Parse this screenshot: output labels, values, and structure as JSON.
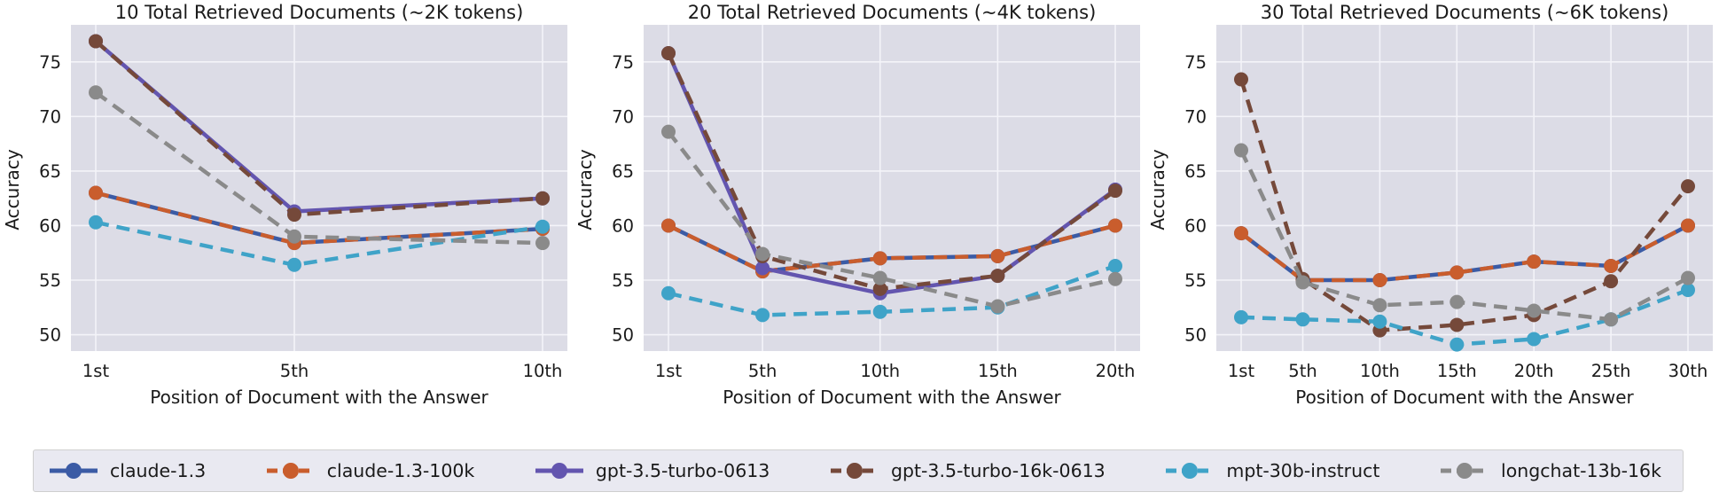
{
  "figure": {
    "plot_bg": "#DCDCE6",
    "grid_color": "#F4F4F9",
    "text_color": "#1a1a1a"
  },
  "legend": {
    "items": [
      {
        "label": "claude-1.3",
        "color": "#3B5BA5",
        "dashed": false
      },
      {
        "label": "claude-1.3-100k",
        "color": "#C95D2D",
        "dashed": true
      },
      {
        "label": "gpt-3.5-turbo-0613",
        "color": "#6355AF",
        "dashed": false
      },
      {
        "label": "gpt-3.5-turbo-16k-0613",
        "color": "#75493A",
        "dashed": true
      },
      {
        "label": "mpt-30b-instruct",
        "color": "#3FA3C8",
        "dashed": true
      },
      {
        "label": "longchat-13b-16k",
        "color": "#8A8A8A",
        "dashed": true
      }
    ]
  },
  "chart_data": [
    {
      "type": "line",
      "title": "10 Total Retrieved Documents (~2K tokens)",
      "xlabel": "Position of Document with the Answer",
      "ylabel": "Accuracy",
      "x": [
        1,
        5,
        10
      ],
      "x_tick_labels": [
        "1st",
        "5th",
        "10th"
      ],
      "yticks": [
        50,
        55,
        60,
        65,
        70,
        75
      ],
      "ylim": [
        48.5,
        78.4
      ],
      "grid": true,
      "legend_position": "bottom",
      "series": [
        {
          "name": "claude-1.3",
          "color": "#3B5BA5",
          "dashed": false,
          "values": [
            63.0,
            58.4,
            59.7
          ]
        },
        {
          "name": "claude-1.3-100k",
          "color": "#C95D2D",
          "dashed": true,
          "values": [
            63.0,
            58.4,
            59.7
          ]
        },
        {
          "name": "gpt-3.5-turbo-0613",
          "color": "#6355AF",
          "dashed": false,
          "values": [
            76.9,
            61.3,
            62.5
          ]
        },
        {
          "name": "gpt-3.5-turbo-16k-0613",
          "color": "#75493A",
          "dashed": true,
          "values": [
            76.9,
            61.0,
            62.5
          ]
        },
        {
          "name": "mpt-30b-instruct",
          "color": "#3FA3C8",
          "dashed": true,
          "values": [
            60.3,
            56.4,
            59.9
          ]
        },
        {
          "name": "longchat-13b-16k",
          "color": "#8A8A8A",
          "dashed": true,
          "values": [
            72.2,
            59.0,
            58.4
          ]
        }
      ]
    },
    {
      "type": "line",
      "title": "20 Total Retrieved Documents (~4K tokens)",
      "xlabel": "Position of Document with the Answer",
      "ylabel": "Accuracy",
      "x": [
        1,
        5,
        10,
        15,
        20
      ],
      "x_tick_labels": [
        "1st",
        "5th",
        "10th",
        "15th",
        "20th"
      ],
      "yticks": [
        50,
        55,
        60,
        65,
        70,
        75
      ],
      "ylim": [
        48.5,
        78.4
      ],
      "grid": true,
      "legend_position": "bottom",
      "series": [
        {
          "name": "claude-1.3",
          "color": "#3B5BA5",
          "dashed": false,
          "values": [
            60.0,
            55.8,
            57.0,
            57.2,
            60.0
          ]
        },
        {
          "name": "claude-1.3-100k",
          "color": "#C95D2D",
          "dashed": true,
          "values": [
            60.0,
            55.8,
            57.0,
            57.2,
            60.0
          ]
        },
        {
          "name": "gpt-3.5-turbo-0613",
          "color": "#6355AF",
          "dashed": false,
          "values": [
            75.8,
            56.1,
            53.8,
            55.4,
            63.3
          ]
        },
        {
          "name": "gpt-3.5-turbo-16k-0613",
          "color": "#75493A",
          "dashed": true,
          "values": [
            75.8,
            57.2,
            54.2,
            55.4,
            63.2
          ]
        },
        {
          "name": "mpt-30b-instruct",
          "color": "#3FA3C8",
          "dashed": true,
          "values": [
            53.8,
            51.8,
            52.1,
            52.5,
            56.3
          ]
        },
        {
          "name": "longchat-13b-16k",
          "color": "#8A8A8A",
          "dashed": true,
          "values": [
            68.6,
            57.4,
            55.2,
            52.6,
            55.1
          ]
        }
      ]
    },
    {
      "type": "line",
      "title": "30 Total Retrieved Documents (~6K tokens)",
      "xlabel": "Position of Document with the Answer",
      "ylabel": "Accuracy",
      "x": [
        1,
        5,
        10,
        15,
        20,
        25,
        30
      ],
      "x_tick_labels": [
        "1st",
        "5th",
        "10th",
        "15th",
        "20th",
        "25th",
        "30th"
      ],
      "yticks": [
        50,
        55,
        60,
        65,
        70,
        75
      ],
      "ylim": [
        48.5,
        78.4
      ],
      "grid": true,
      "legend_position": "bottom",
      "series": [
        {
          "name": "claude-1.3",
          "color": "#3B5BA5",
          "dashed": false,
          "values": [
            59.3,
            55.0,
            55.0,
            55.7,
            56.7,
            56.3,
            60.0
          ]
        },
        {
          "name": "claude-1.3-100k",
          "color": "#C95D2D",
          "dashed": true,
          "values": [
            59.3,
            55.0,
            55.0,
            55.7,
            56.7,
            56.3,
            60.0
          ]
        },
        {
          "name": "gpt-3.5-turbo-16k-0613",
          "color": "#75493A",
          "dashed": true,
          "values": [
            73.4,
            55.1,
            50.4,
            50.9,
            51.8,
            54.9,
            63.6
          ]
        },
        {
          "name": "mpt-30b-instruct",
          "color": "#3FA3C8",
          "dashed": true,
          "values": [
            51.6,
            51.4,
            51.2,
            49.1,
            49.6,
            51.4,
            54.1
          ]
        },
        {
          "name": "longchat-13b-16k",
          "color": "#8A8A8A",
          "dashed": true,
          "values": [
            66.9,
            54.8,
            52.7,
            53.0,
            52.2,
            51.4,
            55.2
          ]
        }
      ]
    }
  ]
}
